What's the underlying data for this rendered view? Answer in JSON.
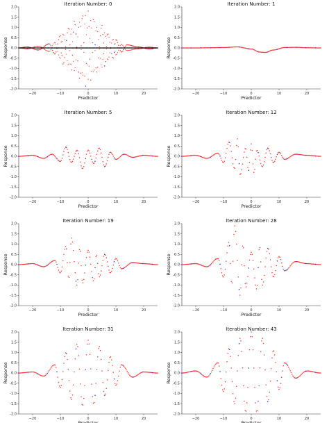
{
  "figure": {
    "dot_color": "#ff2a2a",
    "dot_color_secondary": "#1a1aff",
    "line_color": "#000000"
  },
  "chart_data": [
    {
      "type": "scatter",
      "title": "Iteration Number: 0",
      "xlabel": "Predictor",
      "ylabel": "Response",
      "xlim": [
        -25,
        25
      ],
      "ylim": [
        -2.0,
        2.0
      ],
      "x_ticks": [
        -20,
        -10,
        0,
        10,
        20
      ],
      "y_ticks": [
        2.0,
        1.5,
        1.0,
        0.5,
        0.0,
        -0.5,
        -1.0,
        -1.5,
        -2.0
      ],
      "series": [
        {
          "role": "target",
          "x": [
            -25,
            -22,
            -18,
            -14,
            -12,
            -10,
            -9,
            -7,
            -6,
            -5,
            -3,
            -2,
            -1,
            0,
            1,
            2,
            3,
            5,
            6,
            7,
            9,
            10,
            12,
            14,
            18,
            22,
            25
          ],
          "y": [
            0.0,
            0.05,
            -0.1,
            0.2,
            -0.3,
            0.6,
            -0.8,
            1.0,
            -1.1,
            1.3,
            -1.5,
            1.7,
            -1.9,
            1.8,
            -1.6,
            1.5,
            -1.2,
            1.1,
            -0.9,
            0.7,
            -0.5,
            0.4,
            -0.2,
            0.15,
            0.05,
            -0.05,
            0.0
          ]
        },
        {
          "role": "fit",
          "x": [
            -25,
            25
          ],
          "y": [
            0.0,
            0.0
          ]
        }
      ]
    },
    {
      "type": "scatter",
      "title": "Iteration Number: 1",
      "xlabel": "Predictor",
      "ylabel": "Response",
      "xlim": [
        -25,
        25
      ],
      "ylim": [
        -2.0,
        2.0
      ],
      "x_ticks": [
        -20,
        -10,
        0,
        10,
        20
      ],
      "y_ticks": [
        2.0,
        1.5,
        1.0,
        0.5,
        0.0,
        -0.5,
        -1.0,
        -1.5,
        -2.0
      ],
      "series": [
        {
          "role": "fit",
          "x": [
            -25,
            -20,
            -15,
            -10,
            -5,
            0,
            3,
            5,
            8,
            12,
            16,
            20,
            25
          ],
          "y": [
            0.0,
            0.0,
            0.01,
            0.02,
            0.05,
            -0.05,
            -0.2,
            -0.22,
            -0.1,
            0.02,
            0.03,
            0.01,
            0.0
          ]
        }
      ]
    },
    {
      "type": "scatter",
      "title": "Iteration Number: 5",
      "xlabel": "Predictor",
      "ylabel": "Response",
      "xlim": [
        -25,
        25
      ],
      "ylim": [
        -2.0,
        2.0
      ],
      "x_ticks": [
        -20,
        -10,
        0,
        10,
        20
      ],
      "y_ticks": [
        2.0,
        1.5,
        1.0,
        0.5,
        0.0,
        -0.5,
        -1.0,
        -1.5,
        -2.0
      ],
      "series": [
        {
          "role": "fit",
          "x": [
            -25,
            -20,
            -16,
            -13,
            -10,
            -8,
            -6,
            -4,
            -2,
            0,
            2,
            4,
            6,
            8,
            10,
            13,
            16,
            20,
            25
          ],
          "y": [
            0.0,
            0.05,
            -0.1,
            0.1,
            -0.25,
            0.45,
            -0.3,
            0.3,
            -0.6,
            0.3,
            -0.35,
            0.4,
            -0.5,
            0.2,
            -0.15,
            0.1,
            -0.05,
            0.05,
            0.0
          ]
        }
      ]
    },
    {
      "type": "scatter",
      "title": "Iteration Number: 12",
      "xlabel": "Predictor",
      "ylabel": "Response",
      "xlim": [
        -25,
        25
      ],
      "ylim": [
        -2.0,
        2.0
      ],
      "x_ticks": [
        -20,
        -10,
        0,
        10,
        20
      ],
      "y_ticks": [
        2.0,
        1.5,
        1.0,
        0.5,
        0.0,
        -0.5,
        -1.0,
        -1.5,
        -2.0
      ],
      "series": [
        {
          "role": "fit",
          "x": [
            -25,
            -20,
            -16,
            -12,
            -10,
            -8,
            -6,
            -5,
            -4,
            -2,
            -1,
            0,
            1,
            2,
            4,
            6,
            8,
            10,
            12,
            16,
            20,
            25
          ],
          "y": [
            0.0,
            0.05,
            -0.1,
            0.15,
            -0.3,
            0.7,
            -0.6,
            0.85,
            -0.9,
            0.4,
            -0.7,
            0.6,
            -0.8,
            0.3,
            -0.5,
            0.4,
            -0.3,
            0.2,
            -0.15,
            0.1,
            0.05,
            0.0
          ]
        }
      ]
    },
    {
      "type": "scatter",
      "title": "Iteration Number: 19",
      "xlabel": "Predictor",
      "ylabel": "Response",
      "xlim": [
        -25,
        25
      ],
      "ylim": [
        -2.0,
        2.0
      ],
      "x_ticks": [
        -20,
        -10,
        0,
        10,
        20
      ],
      "y_ticks": [
        2.0,
        1.5,
        1.0,
        0.5,
        0.0,
        -0.5,
        -1.0,
        -1.5,
        -2.0
      ],
      "series": [
        {
          "role": "fit",
          "x": [
            -25,
            -20,
            -16,
            -12,
            -10,
            -8,
            -7,
            -6,
            -4,
            -3,
            -2,
            0,
            2,
            3,
            4,
            6,
            8,
            10,
            12,
            16,
            20,
            25
          ],
          "y": [
            0.0,
            0.05,
            -0.1,
            0.2,
            -0.4,
            0.9,
            -0.7,
            1.3,
            -1.0,
            0.8,
            -0.9,
            0.7,
            -0.8,
            0.5,
            -0.6,
            0.5,
            -0.4,
            0.3,
            -0.2,
            0.1,
            0.05,
            0.0
          ]
        }
      ]
    },
    {
      "type": "scatter",
      "title": "Iteration Number: 28",
      "xlabel": "Predictor",
      "ylabel": "Response",
      "xlim": [
        -25,
        25
      ],
      "ylim": [
        -2.0,
        2.0
      ],
      "x_ticks": [
        -20,
        -10,
        0,
        10,
        20
      ],
      "y_ticks": [
        2.0,
        1.5,
        1.0,
        0.5,
        0.0,
        -0.5,
        -1.0,
        -1.5,
        -2.0
      ],
      "series": [
        {
          "role": "fit",
          "x": [
            -25,
            -20,
            -16,
            -12,
            -10,
            -8,
            -7,
            -6,
            -4,
            -3,
            -2,
            0,
            2,
            3,
            4,
            6,
            8,
            10,
            12,
            16,
            20,
            25
          ],
          "y": [
            0.0,
            0.05,
            -0.1,
            0.3,
            -0.6,
            1.1,
            -1.0,
            1.9,
            -1.5,
            1.0,
            -1.1,
            0.6,
            -1.2,
            0.9,
            -1.0,
            0.8,
            -0.6,
            0.4,
            -0.3,
            0.15,
            0.05,
            0.0
          ]
        }
      ]
    },
    {
      "type": "scatter",
      "title": "Iteration Number: 31",
      "xlabel": "Predictor",
      "ylabel": "Response",
      "xlim": [
        -25,
        25
      ],
      "ylim": [
        -2.0,
        2.0
      ],
      "x_ticks": [
        -20,
        -10,
        0,
        10,
        20
      ],
      "y_ticks": [
        2.0,
        1.5,
        1.0,
        0.5,
        0.0,
        -0.5,
        -1.0,
        -1.5,
        -2.0
      ],
      "series": [
        {
          "role": "fit",
          "x": [
            -25,
            -20,
            -16,
            -12,
            -10,
            -8,
            -6,
            -4,
            -2,
            0,
            2,
            4,
            6,
            8,
            10,
            12,
            16,
            20,
            25
          ],
          "y": [
            0.0,
            0.05,
            -0.15,
            0.4,
            -0.7,
            1.0,
            -1.3,
            1.4,
            -1.6,
            1.6,
            -1.5,
            1.3,
            -1.1,
            0.8,
            -0.6,
            0.4,
            -0.2,
            0.05,
            0.0
          ]
        }
      ]
    },
    {
      "type": "scatter",
      "title": "Iteration Number: 43",
      "xlabel": "Predictor",
      "ylabel": "Response",
      "xlim": [
        -25,
        25
      ],
      "ylim": [
        -2.0,
        2.0
      ],
      "x_ticks": [
        -20,
        -10,
        0,
        10,
        20
      ],
      "y_ticks": [
        2.0,
        1.5,
        1.0,
        0.5,
        0.0,
        -0.5,
        -1.0,
        -1.5,
        -2.0
      ],
      "series": [
        {
          "role": "fit",
          "x": [
            -25,
            -20,
            -16,
            -12,
            -10,
            -8,
            -6,
            -4,
            -2,
            0,
            2,
            4,
            6,
            8,
            10,
            12,
            16,
            20,
            25
          ],
          "y": [
            0.0,
            0.1,
            -0.2,
            0.5,
            -0.9,
            1.2,
            -1.5,
            1.7,
            -1.9,
            2.0,
            -1.9,
            1.7,
            -1.4,
            1.1,
            -0.8,
            0.5,
            -0.25,
            0.1,
            0.0
          ]
        }
      ]
    }
  ]
}
